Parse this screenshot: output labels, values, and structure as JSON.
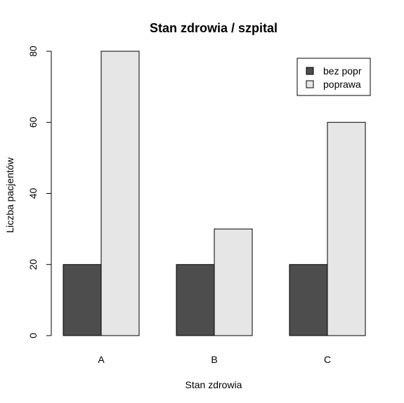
{
  "chart_data": {
    "type": "bar",
    "title": "Stan zdrowia / szpital",
    "xlabel": "Stan zdrowia",
    "ylabel": "Liczba pacjentów",
    "categories": [
      "A",
      "B",
      "C"
    ],
    "series": [
      {
        "name": "bez popr",
        "values": [
          20,
          20,
          20
        ],
        "color": "#4d4d4d"
      },
      {
        "name": "poprawa",
        "values": [
          80,
          30,
          60
        ],
        "color": "#e6e6e6"
      }
    ],
    "ylim": [
      0,
      80
    ],
    "yticks": [
      "0",
      "20",
      "40",
      "60",
      "80"
    ],
    "grid": false,
    "legend_position": "top-right"
  }
}
